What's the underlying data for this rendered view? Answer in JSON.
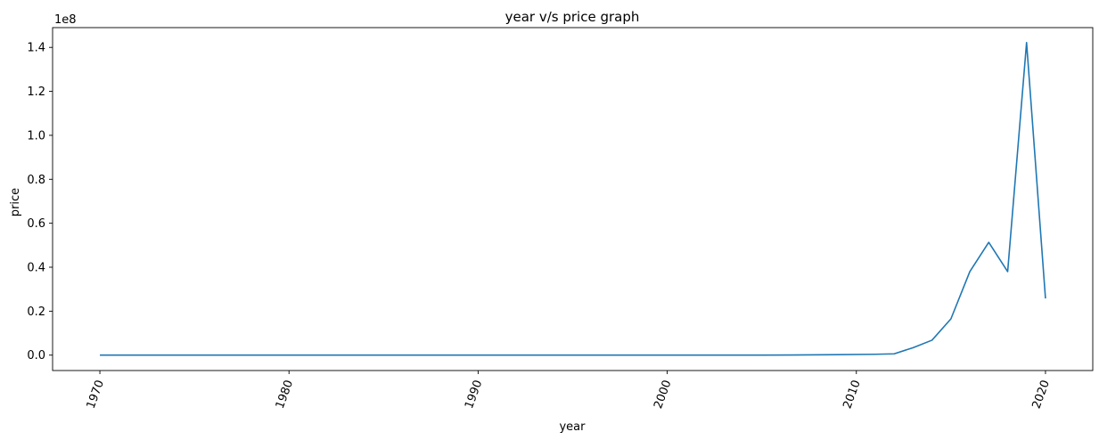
{
  "chart_data": {
    "type": "line",
    "title": "year v/s price graph",
    "xlabel": "year",
    "ylabel": "price",
    "y_offset_label": "1e8",
    "xlim": [
      1967.5,
      2022.5
    ],
    "ylim": [
      -0.07,
      1.49
    ],
    "y_unit_multiplier": 100000000,
    "x_ticks": [
      1970,
      1980,
      1990,
      2000,
      2010,
      2020
    ],
    "x_tick_labels": [
      "1970",
      "1980",
      "1990",
      "2000",
      "2010",
      "2020"
    ],
    "y_ticks": [
      0.0,
      0.2,
      0.4,
      0.6,
      0.8,
      1.0,
      1.2,
      1.4
    ],
    "y_tick_labels": [
      "0.0",
      "0.2",
      "0.4",
      "0.6",
      "0.8",
      "1.0",
      "1.2",
      "1.4"
    ],
    "grid": false,
    "series": [
      {
        "color": "#1f77b4",
        "x": [
          1970,
          1980,
          1990,
          2000,
          2005,
          2009,
          2011,
          2012,
          2013,
          2014,
          2015,
          2016,
          2017,
          2018,
          2019,
          2020
        ],
        "y": [
          0.0,
          0.0,
          0.0,
          0.0,
          0.0,
          0.002,
          0.004,
          0.006,
          0.034,
          0.068,
          0.165,
          0.38,
          0.513,
          0.38,
          1.422,
          0.258
        ]
      }
    ]
  }
}
